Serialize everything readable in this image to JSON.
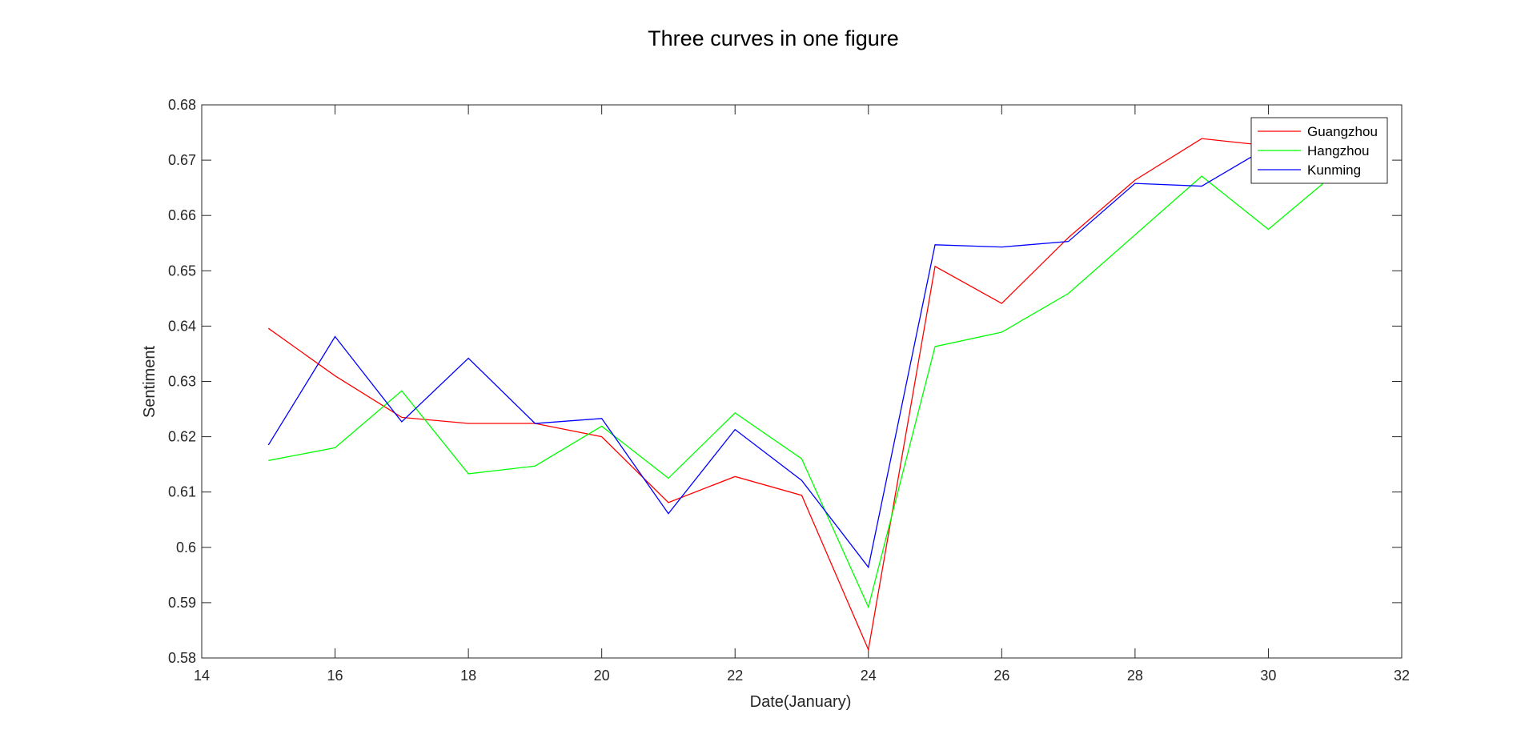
{
  "chart_data": {
    "type": "line",
    "title": "Three curves in one figure",
    "xlabel": "Date(January)",
    "ylabel": "Sentiment",
    "xlim": [
      14,
      32
    ],
    "ylim": [
      0.58,
      0.68
    ],
    "xticks": [
      14,
      16,
      18,
      20,
      22,
      24,
      26,
      28,
      30,
      32
    ],
    "yticks": [
      0.58,
      0.59,
      0.6,
      0.61,
      0.62,
      0.63,
      0.64,
      0.65,
      0.66,
      0.67,
      0.68
    ],
    "grid": false,
    "legend_position": "top-right",
    "x": [
      15,
      16,
      17,
      18,
      19,
      20,
      21,
      22,
      23,
      24,
      25,
      26,
      27,
      28,
      29,
      30,
      31
    ],
    "series": [
      {
        "name": "Guangzhou",
        "color": "#ff0000",
        "values": [
          0.6396,
          0.631,
          0.6235,
          0.6224,
          0.6224,
          0.62,
          0.6081,
          0.6128,
          0.6094,
          0.5815,
          0.6508,
          0.6441,
          0.656,
          0.6664,
          0.6739,
          0.6726,
          0.6724
        ]
      },
      {
        "name": "Hangzhou",
        "color": "#00ff00",
        "values": [
          0.6157,
          0.618,
          0.6283,
          0.6133,
          0.6147,
          0.6219,
          0.6125,
          0.6243,
          0.616,
          0.5892,
          0.6363,
          0.6389,
          0.6459,
          0.6565,
          0.6671,
          0.6575,
          0.6676
        ]
      },
      {
        "name": "Kunming",
        "color": "#0000ff",
        "values": [
          0.6185,
          0.6381,
          0.6227,
          0.6342,
          0.6224,
          0.6233,
          0.6061,
          0.6213,
          0.6121,
          0.5964,
          0.6547,
          0.6543,
          0.6553,
          0.6658,
          0.6653,
          0.6724,
          0.676
        ]
      }
    ]
  }
}
